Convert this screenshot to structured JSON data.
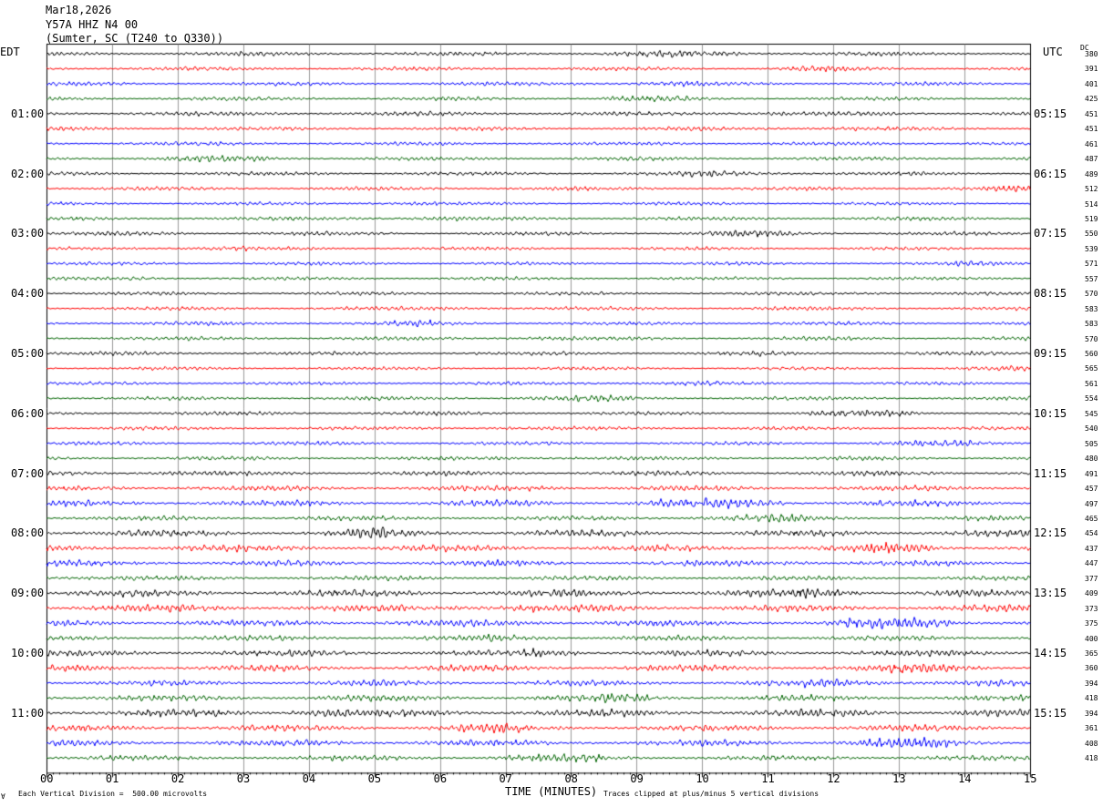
{
  "header": {
    "date": "Mar18,2026",
    "station": "Y57A HHZ N4 00",
    "location": "(Sumter, SC (T240 to Q330))"
  },
  "labels": {
    "left_timezone": "EDT",
    "right_timezone": "UTC",
    "dc_header": "DC",
    "xlabel": "TIME (MINUTES)",
    "scale_note": "Each Vertical Division =  500.00 microvolts",
    "clip_note": "Traces clipped at plus/minus 5 vertical divisions",
    "corner_mark": "∀"
  },
  "colors": {
    "cycle": [
      "#000000",
      "#ff0000",
      "#0000ff",
      "#006400"
    ],
    "grid": "#000000"
  },
  "chart_data": {
    "type": "line",
    "title": "Y57A HHZ N4 00",
    "xlabel": "TIME (MINUTES)",
    "x_ticks": [
      "00",
      "01",
      "02",
      "03",
      "04",
      "05",
      "06",
      "07",
      "08",
      "09",
      "10",
      "11",
      "12",
      "13",
      "14",
      "15"
    ],
    "xlim": [
      0,
      15
    ],
    "traces_per_hour": 4,
    "left_hour_labels": [
      "01:00",
      "02:00",
      "03:00",
      "04:00",
      "05:00",
      "06:00",
      "07:00",
      "08:00",
      "09:00",
      "10:00",
      "11:00"
    ],
    "right_hour_labels": [
      "05:15",
      "06:15",
      "07:15",
      "08:15",
      "09:15",
      "10:15",
      "11:15",
      "12:15",
      "13:15",
      "14:15",
      "15:15"
    ],
    "dc_offsets": [
      "380",
      "391",
      "401",
      "425",
      "451",
      "451",
      "461",
      "487",
      "489",
      "512",
      "514",
      "519",
      "550",
      "539",
      "571",
      "557",
      "570",
      "583",
      "583",
      "570",
      "560",
      "565",
      "561",
      "554",
      "545",
      "540",
      "505",
      "480",
      "491",
      "457",
      "497",
      "465",
      "454",
      "437",
      "447",
      "377",
      "409",
      "373",
      "375",
      "400",
      "365",
      "360",
      "394",
      "418",
      "394",
      "361",
      "408",
      "418"
    ],
    "trace_amplitude_divisions": [
      0.9,
      0.8,
      0.8,
      0.8,
      0.9,
      0.8,
      0.8,
      0.8,
      0.8,
      0.8,
      0.7,
      0.8,
      0.8,
      0.7,
      0.7,
      0.7,
      0.7,
      0.8,
      0.8,
      0.8,
      0.8,
      0.7,
      0.7,
      0.8,
      0.8,
      0.8,
      0.8,
      0.8,
      1.0,
      1.1,
      1.3,
      1.0,
      1.4,
      1.4,
      1.2,
      1.0,
      1.5,
      1.5,
      1.4,
      1.1,
      1.3,
      1.3,
      1.2,
      1.3,
      1.6,
      1.3,
      1.3,
      1.1
    ],
    "vertical_division_microvolts": 500,
    "clip_divisions": 5
  }
}
